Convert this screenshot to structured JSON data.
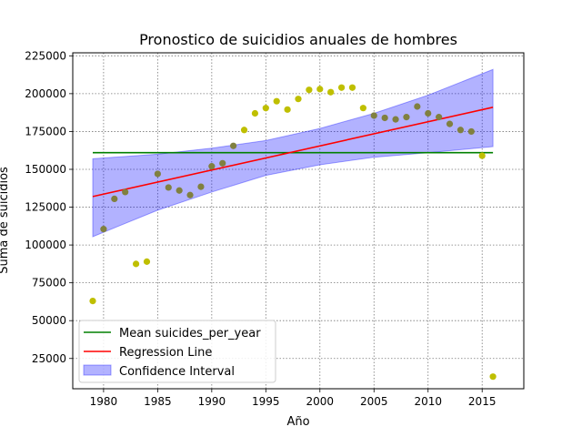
{
  "chart_data": {
    "type": "scatter",
    "title": "Pronostico de suicidios anuales de hombres",
    "xlabel": "Año",
    "ylabel": "Suma de suicidios",
    "xlim": [
      1977.15,
      2018.85
    ],
    "ylim": [
      5000,
      227000
    ],
    "xticks": [
      1980,
      1985,
      1990,
      1995,
      2000,
      2005,
      2010,
      2015
    ],
    "yticks": [
      25000,
      50000,
      75000,
      100000,
      125000,
      150000,
      175000,
      200000,
      225000
    ],
    "grid": true,
    "legend_position": "lower-left",
    "points": [
      {
        "x": 1979,
        "y": 63000
      },
      {
        "x": 1980,
        "y": 110500
      },
      {
        "x": 1981,
        "y": 130500
      },
      {
        "x": 1982,
        "y": 135000
      },
      {
        "x": 1983,
        "y": 87500
      },
      {
        "x": 1984,
        "y": 89000
      },
      {
        "x": 1985,
        "y": 147000
      },
      {
        "x": 1986,
        "y": 138000
      },
      {
        "x": 1987,
        "y": 136000
      },
      {
        "x": 1988,
        "y": 133000
      },
      {
        "x": 1989,
        "y": 138500
      },
      {
        "x": 1990,
        "y": 152000
      },
      {
        "x": 1991,
        "y": 154000
      },
      {
        "x": 1992,
        "y": 165500
      },
      {
        "x": 1993,
        "y": 176000
      },
      {
        "x": 1994,
        "y": 187000
      },
      {
        "x": 1995,
        "y": 190500
      },
      {
        "x": 1996,
        "y": 195000
      },
      {
        "x": 1997,
        "y": 189500
      },
      {
        "x": 1998,
        "y": 196500
      },
      {
        "x": 1999,
        "y": 202500
      },
      {
        "x": 2000,
        "y": 203000
      },
      {
        "x": 2001,
        "y": 201000
      },
      {
        "x": 2002,
        "y": 204000
      },
      {
        "x": 2003,
        "y": 204000
      },
      {
        "x": 2004,
        "y": 190500
      },
      {
        "x": 2005,
        "y": 185500
      },
      {
        "x": 2006,
        "y": 184000
      },
      {
        "x": 2007,
        "y": 183000
      },
      {
        "x": 2008,
        "y": 184500
      },
      {
        "x": 2009,
        "y": 191500
      },
      {
        "x": 2010,
        "y": 187000
      },
      {
        "x": 2011,
        "y": 184500
      },
      {
        "x": 2012,
        "y": 180000
      },
      {
        "x": 2013,
        "y": 176000
      },
      {
        "x": 2014,
        "y": 175000
      },
      {
        "x": 2015,
        "y": 159000
      },
      {
        "x": 2016,
        "y": 13000
      }
    ],
    "mean_line": {
      "name": "Mean suicides_per_year",
      "x": [
        1979,
        2016
      ],
      "y": [
        161000,
        161000
      ],
      "color": "#008000"
    },
    "regression_line": {
      "name": "Regression Line",
      "x": [
        1979,
        2016
      ],
      "y": [
        132000,
        191000
      ],
      "color": "#ff0000"
    },
    "confidence_interval": {
      "name": "Confidence Interval",
      "color": "#0000ff",
      "x": [
        1979,
        1985,
        1990,
        1995,
        2000,
        2005,
        2010,
        2016
      ],
      "lower": [
        105500,
        123000,
        135000,
        146000,
        153000,
        158000,
        161000,
        165000
      ],
      "upper": [
        157000,
        160000,
        164000,
        169000,
        177000,
        187000,
        199000,
        216000
      ]
    },
    "point_color": "#bfbf00",
    "point_overlap_color": "#808040"
  }
}
